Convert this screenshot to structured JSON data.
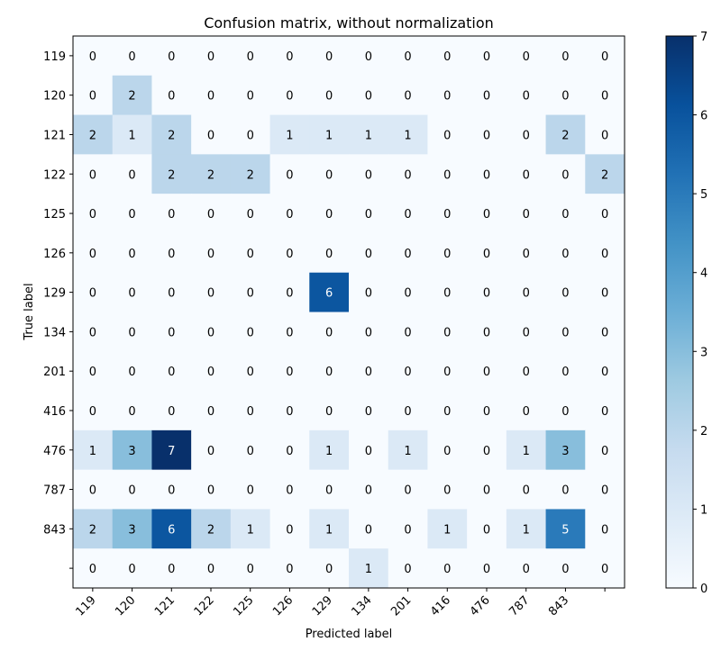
{
  "chart_data": {
    "type": "heatmap",
    "title": "Confusion matrix, without normalization",
    "xlabel": "Predicted label",
    "ylabel": "True label",
    "row_labels": [
      "119",
      "120",
      "121",
      "122",
      "125",
      "126",
      "129",
      "134",
      "201",
      "416",
      "476",
      "787",
      "843",
      ""
    ],
    "col_labels": [
      "119",
      "120",
      "121",
      "122",
      "125",
      "126",
      "129",
      "134",
      "201",
      "416",
      "476",
      "787",
      "843",
      ""
    ],
    "values": [
      [
        0,
        0,
        0,
        0,
        0,
        0,
        0,
        0,
        0,
        0,
        0,
        0,
        0,
        0
      ],
      [
        0,
        2,
        0,
        0,
        0,
        0,
        0,
        0,
        0,
        0,
        0,
        0,
        0,
        0
      ],
      [
        2,
        1,
        2,
        0,
        0,
        1,
        1,
        1,
        1,
        0,
        0,
        0,
        2,
        0
      ],
      [
        0,
        0,
        2,
        2,
        2,
        0,
        0,
        0,
        0,
        0,
        0,
        0,
        0,
        2
      ],
      [
        0,
        0,
        0,
        0,
        0,
        0,
        0,
        0,
        0,
        0,
        0,
        0,
        0,
        0
      ],
      [
        0,
        0,
        0,
        0,
        0,
        0,
        0,
        0,
        0,
        0,
        0,
        0,
        0,
        0
      ],
      [
        0,
        0,
        0,
        0,
        0,
        0,
        6,
        0,
        0,
        0,
        0,
        0,
        0,
        0
      ],
      [
        0,
        0,
        0,
        0,
        0,
        0,
        0,
        0,
        0,
        0,
        0,
        0,
        0,
        0
      ],
      [
        0,
        0,
        0,
        0,
        0,
        0,
        0,
        0,
        0,
        0,
        0,
        0,
        0,
        0
      ],
      [
        0,
        0,
        0,
        0,
        0,
        0,
        0,
        0,
        0,
        0,
        0,
        0,
        0,
        0
      ],
      [
        1,
        3,
        7,
        0,
        0,
        0,
        1,
        0,
        1,
        0,
        0,
        1,
        3,
        0
      ],
      [
        0,
        0,
        0,
        0,
        0,
        0,
        0,
        0,
        0,
        0,
        0,
        0,
        0,
        0
      ],
      [
        2,
        3,
        6,
        2,
        1,
        0,
        1,
        0,
        0,
        1,
        0,
        1,
        5,
        0
      ],
      [
        0,
        0,
        0,
        0,
        0,
        0,
        0,
        1,
        0,
        0,
        0,
        0,
        0,
        0
      ]
    ],
    "colormap": "Blues",
    "color_range": [
      0,
      7
    ],
    "colorbar_ticks": [
      0,
      1,
      2,
      3,
      4,
      5,
      6,
      7
    ],
    "grid": false
  }
}
